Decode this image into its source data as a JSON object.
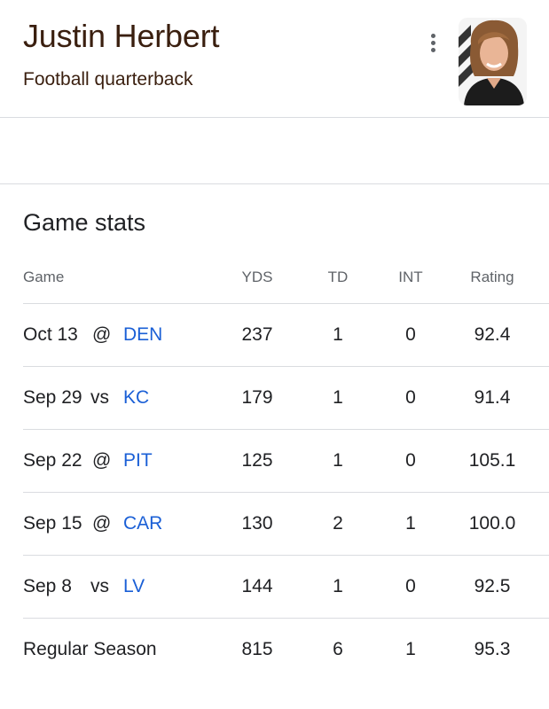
{
  "player": {
    "name": "Justin Herbert",
    "description": "Football quarterback"
  },
  "section": {
    "title": "Game stats"
  },
  "table": {
    "headers": {
      "game": "Game",
      "yds": "YDS",
      "td": "TD",
      "int": "INT",
      "rating": "Rating"
    },
    "rows": [
      {
        "date": "Oct 13",
        "venue": "@",
        "opponent": "DEN",
        "yds": "237",
        "td": "1",
        "int": "0",
        "rating": "92.4"
      },
      {
        "date": "Sep 29",
        "venue": "vs",
        "opponent": "KC",
        "yds": "179",
        "td": "1",
        "int": "0",
        "rating": "91.4"
      },
      {
        "date": "Sep 22",
        "venue": "@",
        "opponent": "PIT",
        "yds": "125",
        "td": "1",
        "int": "0",
        "rating": "105.1"
      },
      {
        "date": "Sep 15",
        "venue": "@",
        "opponent": "CAR",
        "yds": "130",
        "td": "2",
        "int": "1",
        "rating": "100.0"
      },
      {
        "date": "Sep 8",
        "venue": "vs",
        "opponent": "LV",
        "yds": "144",
        "td": "1",
        "int": "0",
        "rating": "92.5"
      }
    ],
    "total": {
      "label": "Regular Season",
      "yds": "815",
      "td": "6",
      "int": "1",
      "rating": "95.3"
    }
  },
  "colors": {
    "link": "#1a5fd6",
    "title": "#3a1f0f",
    "divider": "#dadce0"
  },
  "icons": {
    "more": "more-vert-icon"
  }
}
